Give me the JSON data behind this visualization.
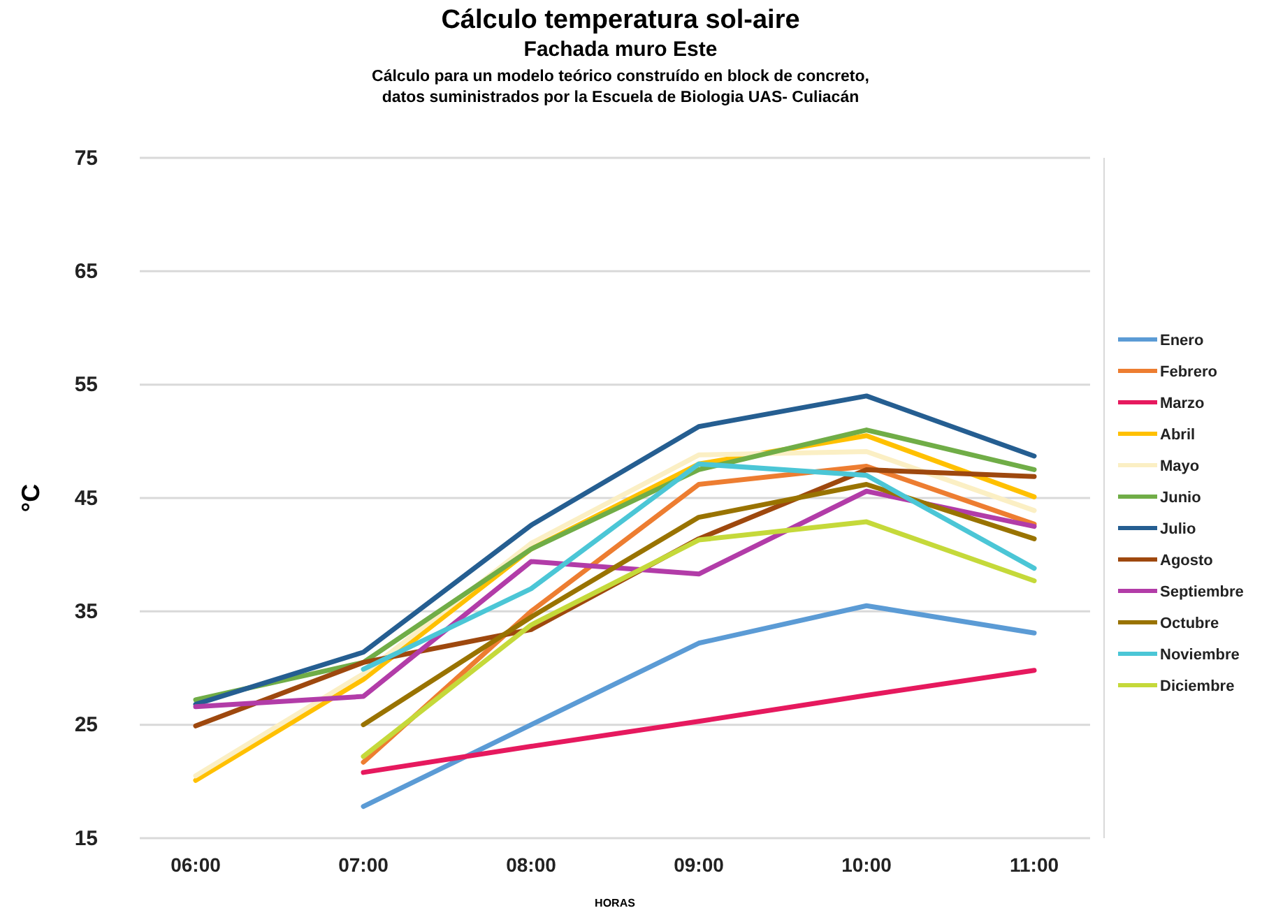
{
  "chart_data": {
    "type": "line",
    "title": "Cálculo temperatura sol-aire",
    "subtitle": "Fachada muro Este",
    "annotations": [
      "Cálculo para un modelo teórico construído en block de concreto,",
      "datos suministrados por la Escuela de Biologia UAS- Culiacán"
    ],
    "xlabel": "HORAS",
    "ylabel": "°C",
    "categories": [
      "06:00",
      "07:00",
      "08:00",
      "09:00",
      "10:00",
      "11:00"
    ],
    "ylim": [
      15,
      75
    ],
    "yticks": [
      15,
      25,
      35,
      45,
      55,
      65,
      75
    ],
    "grid": "y",
    "legend": "right",
    "marker": "none",
    "line_style": "solid",
    "series": [
      {
        "name": "Enero",
        "color": "#5b9bd5",
        "values": [
          null,
          17.8,
          25,
          32.2,
          35.5,
          33.1
        ]
      },
      {
        "name": "Febrero",
        "color": "#ed7d31",
        "values": [
          null,
          21.7,
          35,
          46.2,
          47.8,
          42.7
        ]
      },
      {
        "name": "Marzo",
        "color": "#e6195e",
        "values": [
          null,
          20.8,
          23.1,
          25.3,
          27.6,
          29.8
        ]
      },
      {
        "name": "Abril",
        "color": "#ffc000",
        "values": [
          20.1,
          29,
          40.5,
          48,
          50.5,
          45.1
        ]
      },
      {
        "name": "Mayo",
        "color": "#fbefc4",
        "values": [
          20.5,
          29.5,
          41,
          48.8,
          49.1,
          43.9
        ]
      },
      {
        "name": "Junio",
        "color": "#70ad47",
        "values": [
          27.2,
          30.5,
          40.5,
          47.5,
          51,
          47.5
        ]
      },
      {
        "name": "Julio",
        "color": "#255e91",
        "values": [
          26.8,
          31.4,
          42.6,
          51.3,
          54,
          48.7
        ]
      },
      {
        "name": "Agosto",
        "color": "#9e480e",
        "values": [
          24.9,
          30.5,
          33.4,
          41.4,
          47.5,
          46.9
        ]
      },
      {
        "name": "Septiembre",
        "color": "#b23ca8",
        "values": [
          26.6,
          27.5,
          39.4,
          38.3,
          45.6,
          42.5
        ]
      },
      {
        "name": "Octubre",
        "color": "#997300",
        "values": [
          null,
          25,
          34.5,
          43.3,
          46.2,
          41.4
        ]
      },
      {
        "name": "Noviembre",
        "color": "#4bc6d6",
        "values": [
          null,
          29.9,
          37,
          48,
          47,
          38.8
        ]
      },
      {
        "name": "Diciembre",
        "color": "#c5d93a",
        "values": [
          null,
          22.2,
          33.8,
          41.3,
          42.9,
          37.7
        ]
      }
    ]
  }
}
